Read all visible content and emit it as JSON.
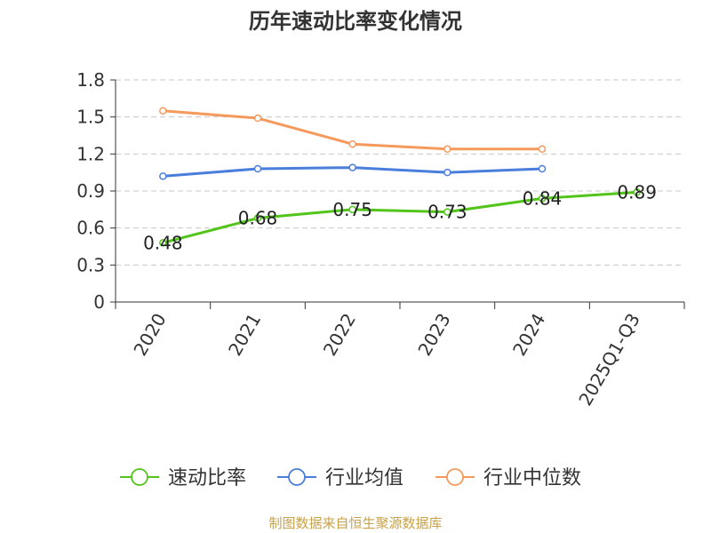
{
  "chart_data": {
    "type": "line",
    "title": "历年速动比率变化情况",
    "categories": [
      "2020",
      "2021",
      "2022",
      "2023",
      "2024",
      "2025Q1-Q3"
    ],
    "series": [
      {
        "name": "速动比率",
        "color": "#52c41a",
        "values": [
          0.48,
          0.68,
          0.75,
          0.73,
          0.84,
          0.89
        ],
        "labels": [
          "0.48",
          "0.68",
          "0.75",
          "0.73",
          "0.84",
          "0.89"
        ]
      },
      {
        "name": "行业均值",
        "color": "#4a7edc",
        "values": [
          1.02,
          1.08,
          1.09,
          1.05,
          1.08,
          null
        ]
      },
      {
        "name": "行业中位数",
        "color": "#f59a5c",
        "values": [
          1.55,
          1.49,
          1.28,
          1.24,
          1.24,
          null
        ]
      }
    ],
    "ylim": [
      0,
      1.8
    ],
    "yticks": [
      "0",
      "0.3",
      "0.6",
      "0.9",
      "1.2",
      "1.5",
      "1.8"
    ],
    "grid": true,
    "legend_position": "bottom"
  },
  "source": {
    "text": "制图数据来自恒生聚源数据库",
    "color": "#c8a24a"
  }
}
